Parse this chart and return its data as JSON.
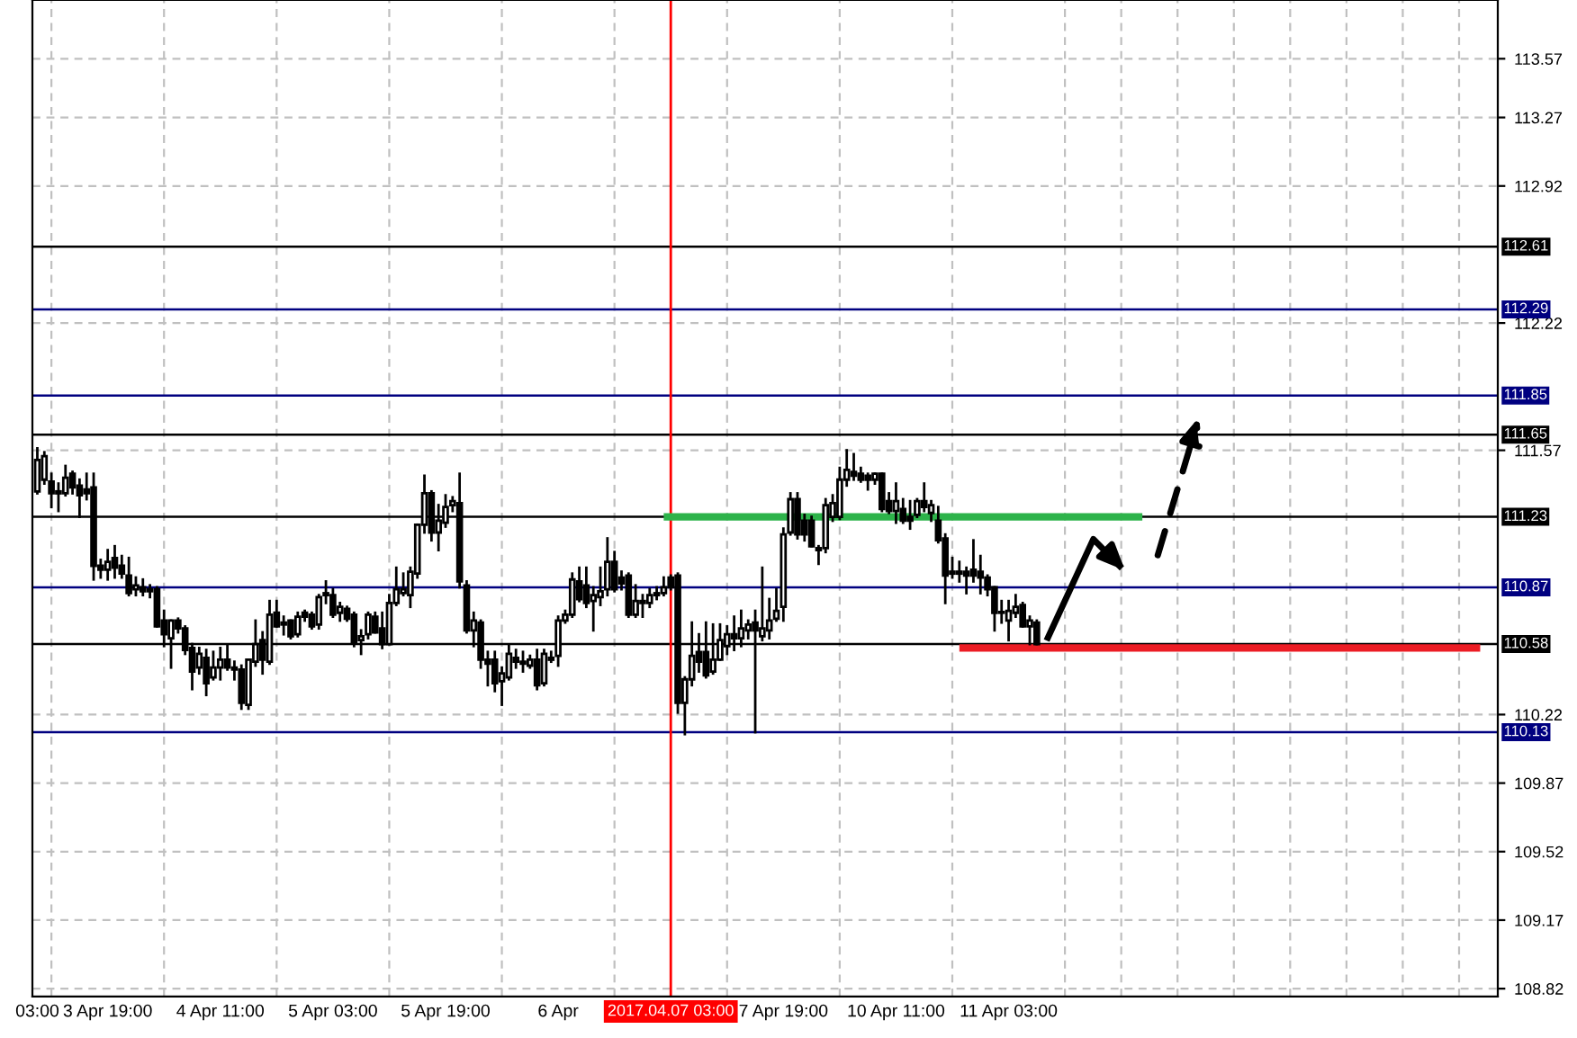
{
  "chart_data": {
    "type": "candlestick",
    "categories": [
      "03:00",
      null,
      null,
      null,
      null,
      null,
      null,
      null,
      null,
      null,
      "3 Apr 19:00",
      null,
      null,
      null,
      null,
      null,
      null,
      null,
      null,
      null,
      null,
      null,
      null,
      null,
      null,
      null,
      "4 Apr 11:00",
      null,
      null,
      null,
      null,
      null,
      null,
      null,
      null,
      null,
      null,
      null,
      null,
      null,
      null,
      null,
      "5 Apr 03:00",
      null,
      null,
      null,
      null,
      null,
      null,
      null,
      null,
      null,
      null,
      null,
      null,
      null,
      null,
      null,
      "5 Apr 19:00",
      null,
      null,
      null,
      null,
      null,
      null,
      null,
      null,
      null,
      null,
      null,
      null,
      null,
      null,
      null,
      "6 Apr",
      null,
      null,
      null,
      null,
      null,
      null,
      null,
      null,
      null,
      null,
      null,
      null,
      null,
      null,
      null,
      "2017.04.07 03:00",
      null,
      null,
      null,
      null,
      null,
      null,
      null,
      null,
      null,
      null,
      null,
      null,
      null,
      null,
      null,
      "7 Apr 19:00",
      null,
      null,
      null,
      null,
      null,
      null,
      null,
      null,
      null,
      null,
      null,
      null,
      null,
      null,
      null,
      "10 Apr 11:00",
      null,
      null,
      null,
      null,
      null,
      null,
      null,
      null,
      null,
      null,
      null,
      null,
      null,
      null,
      null,
      "11 Apr 03:00",
      null,
      null,
      null,
      null,
      null,
      null,
      null,
      null,
      null,
      null,
      null,
      null,
      null,
      null,
      null,
      null,
      null,
      null,
      null,
      null,
      null,
      null,
      null,
      null,
      null,
      null,
      null,
      null,
      null,
      null,
      null,
      null,
      null,
      null,
      null,
      null,
      null,
      null,
      null,
      null,
      null,
      null,
      null,
      null,
      null,
      null,
      null,
      null,
      null,
      null,
      null,
      null,
      null,
      null,
      null,
      null,
      null,
      null,
      null,
      null,
      null,
      null,
      null,
      null,
      null,
      null,
      null,
      null,
      null
    ],
    "ohlc": [
      [
        111.36,
        111.58,
        111.35,
        111.52
      ],
      [
        111.42,
        111.56,
        111.4,
        111.54
      ],
      [
        111.41,
        111.45,
        111.28,
        111.35
      ],
      [
        111.36,
        111.4,
        111.26,
        111.35
      ],
      [
        111.35,
        111.49,
        111.34,
        111.43
      ],
      [
        111.45,
        111.46,
        111.35,
        111.38
      ],
      [
        111.39,
        111.42,
        111.23,
        111.34
      ],
      [
        111.37,
        111.45,
        111.32,
        111.35
      ],
      [
        111.38,
        111.45,
        110.91,
        110.98
      ],
      [
        110.98,
        111.01,
        110.92,
        110.96
      ],
      [
        110.96,
        111.06,
        110.91,
        111.0
      ],
      [
        111.02,
        111.08,
        110.92,
        110.97
      ],
      [
        110.98,
        111.03,
        110.92,
        110.94
      ],
      [
        110.93,
        111.02,
        110.83,
        110.84
      ],
      [
        110.86,
        110.92,
        110.83,
        110.88
      ],
      [
        110.87,
        110.91,
        110.83,
        110.85
      ],
      [
        110.86,
        110.88,
        110.82,
        110.85
      ],
      [
        110.86,
        110.87,
        110.67,
        110.67
      ],
      [
        110.7,
        110.75,
        110.57,
        110.63
      ],
      [
        110.61,
        110.7,
        110.46,
        110.7
      ],
      [
        110.7,
        110.71,
        110.64,
        110.66
      ],
      [
        110.66,
        110.67,
        110.53,
        110.55
      ],
      [
        110.56,
        110.58,
        110.35,
        110.44
      ],
      [
        110.46,
        110.56,
        110.43,
        110.53
      ],
      [
        110.51,
        110.55,
        110.32,
        110.38
      ],
      [
        110.41,
        110.54,
        110.4,
        110.46
      ],
      [
        110.46,
        110.56,
        110.4,
        110.5
      ],
      [
        110.5,
        110.57,
        110.45,
        110.46
      ],
      [
        110.46,
        110.49,
        110.4,
        110.45
      ],
      [
        110.45,
        110.47,
        110.25,
        110.28
      ],
      [
        110.27,
        110.5,
        110.25,
        110.5
      ],
      [
        110.49,
        110.7,
        110.47,
        110.58
      ],
      [
        110.6,
        110.64,
        110.43,
        110.5
      ],
      [
        110.49,
        110.8,
        110.48,
        110.73
      ],
      [
        110.74,
        110.8,
        110.67,
        110.67
      ],
      [
        110.69,
        110.72,
        110.63,
        110.68
      ],
      [
        110.7,
        110.7,
        110.61,
        110.62
      ],
      [
        110.63,
        110.74,
        110.62,
        110.72
      ],
      [
        110.74,
        110.75,
        110.7,
        110.72
      ],
      [
        110.73,
        110.74,
        110.66,
        110.67
      ],
      [
        110.68,
        110.83,
        110.66,
        110.82
      ],
      [
        110.83,
        110.9,
        110.79,
        110.84
      ],
      [
        110.83,
        110.86,
        110.72,
        110.73
      ],
      [
        110.74,
        110.79,
        110.7,
        110.77
      ],
      [
        110.76,
        110.77,
        110.7,
        110.71
      ],
      [
        110.73,
        110.74,
        110.57,
        110.59
      ],
      [
        110.6,
        110.65,
        110.53,
        110.62
      ],
      [
        110.63,
        110.74,
        110.61,
        110.73
      ],
      [
        110.72,
        110.74,
        110.64,
        110.64
      ],
      [
        110.66,
        110.74,
        110.56,
        110.58
      ],
      [
        110.58,
        110.83,
        110.58,
        110.79
      ],
      [
        110.79,
        110.97,
        110.78,
        110.86
      ],
      [
        110.84,
        110.94,
        110.83,
        110.86
      ],
      [
        110.83,
        110.97,
        110.77,
        110.95
      ],
      [
        110.94,
        111.19,
        110.92,
        111.19
      ],
      [
        111.19,
        111.44,
        111.15,
        111.35
      ],
      [
        111.35,
        111.36,
        111.11,
        111.15
      ],
      [
        111.15,
        111.29,
        111.06,
        111.21
      ],
      [
        111.2,
        111.34,
        111.18,
        111.28
      ],
      [
        111.29,
        111.33,
        111.26,
        111.31
      ],
      [
        111.3,
        111.45,
        110.87,
        110.9
      ],
      [
        110.88,
        110.9,
        110.64,
        110.65
      ],
      [
        110.65,
        110.74,
        110.57,
        110.7
      ],
      [
        110.69,
        110.7,
        110.46,
        110.5
      ],
      [
        110.5,
        110.54,
        110.37,
        110.48
      ],
      [
        110.5,
        110.54,
        110.34,
        110.38
      ],
      [
        110.39,
        110.46,
        110.27,
        110.43
      ],
      [
        110.41,
        110.57,
        110.4,
        110.53
      ],
      [
        110.51,
        110.55,
        110.46,
        110.49
      ],
      [
        110.49,
        110.54,
        110.44,
        110.48
      ],
      [
        110.47,
        110.52,
        110.46,
        110.5
      ],
      [
        110.5,
        110.55,
        110.35,
        110.37
      ],
      [
        110.38,
        110.55,
        110.37,
        110.53
      ],
      [
        110.51,
        110.54,
        110.49,
        110.5
      ],
      [
        110.52,
        110.72,
        110.47,
        110.7
      ],
      [
        110.7,
        110.75,
        110.69,
        110.73
      ],
      [
        110.73,
        110.94,
        110.72,
        110.91
      ],
      [
        110.9,
        110.97,
        110.8,
        110.81
      ],
      [
        110.88,
        110.97,
        110.77,
        110.79
      ],
      [
        110.8,
        110.87,
        110.65,
        110.83
      ],
      [
        110.82,
        110.97,
        110.78,
        110.85
      ],
      [
        110.86,
        111.12,
        110.83,
        111.0
      ],
      [
        111.0,
        111.05,
        110.85,
        110.86
      ],
      [
        110.92,
        110.95,
        110.86,
        110.89
      ],
      [
        110.93,
        110.94,
        110.72,
        110.73
      ],
      [
        110.73,
        110.88,
        110.72,
        110.8
      ],
      [
        110.8,
        110.83,
        110.72,
        110.79
      ],
      [
        110.79,
        110.86,
        110.77,
        110.83
      ],
      [
        110.83,
        110.87,
        110.81,
        110.84
      ],
      [
        110.84,
        110.92,
        110.83,
        110.87
      ],
      [
        110.92,
        110.93,
        110.86,
        110.87
      ],
      [
        110.93,
        110.94,
        110.23,
        110.28
      ],
      [
        110.28,
        110.41,
        110.12,
        110.4
      ],
      [
        110.4,
        110.69,
        110.37,
        110.52
      ],
      [
        110.54,
        110.63,
        110.44,
        110.49
      ],
      [
        110.54,
        110.69,
        110.41,
        110.42
      ],
      [
        110.44,
        110.68,
        110.43,
        110.5
      ],
      [
        110.5,
        110.68,
        110.5,
        110.6
      ],
      [
        110.57,
        110.67,
        110.53,
        110.63
      ],
      [
        110.63,
        110.72,
        110.55,
        110.61
      ],
      [
        110.61,
        110.75,
        110.57,
        110.66
      ],
      [
        110.65,
        110.7,
        110.61,
        110.68
      ],
      [
        110.69,
        110.75,
        110.13,
        110.65
      ],
      [
        110.62,
        110.97,
        110.6,
        110.66
      ],
      [
        110.65,
        110.81,
        110.61,
        110.7
      ],
      [
        110.71,
        110.86,
        110.7,
        110.75
      ],
      [
        110.77,
        111.17,
        110.7,
        111.14
      ],
      [
        111.15,
        111.35,
        111.14,
        111.32
      ],
      [
        111.32,
        111.35,
        111.12,
        111.14
      ],
      [
        111.21,
        111.24,
        111.11,
        111.14
      ],
      [
        111.21,
        111.23,
        111.08,
        111.08
      ],
      [
        111.07,
        111.08,
        110.99,
        111.06
      ],
      [
        111.07,
        111.32,
        111.05,
        111.29
      ],
      [
        111.23,
        111.34,
        111.21,
        111.3
      ],
      [
        111.23,
        111.48,
        111.22,
        111.42
      ],
      [
        111.42,
        111.57,
        111.39,
        111.47
      ],
      [
        111.46,
        111.55,
        111.42,
        111.44
      ],
      [
        111.45,
        111.48,
        111.41,
        111.42
      ],
      [
        111.44,
        111.45,
        111.37,
        111.42
      ],
      [
        111.42,
        111.45,
        111.4,
        111.45
      ],
      [
        111.45,
        111.45,
        111.26,
        111.27
      ],
      [
        111.31,
        111.35,
        111.25,
        111.26
      ],
      [
        111.26,
        111.4,
        111.2,
        111.31
      ],
      [
        111.27,
        111.32,
        111.2,
        111.21
      ],
      [
        111.23,
        111.31,
        111.17,
        111.21
      ],
      [
        111.24,
        111.32,
        111.23,
        111.31
      ],
      [
        111.31,
        111.4,
        111.26,
        111.28
      ],
      [
        111.25,
        111.31,
        111.21,
        111.29
      ],
      [
        111.21,
        111.28,
        111.1,
        111.11
      ],
      [
        111.12,
        111.14,
        110.79,
        110.93
      ],
      [
        110.95,
        111.02,
        110.92,
        110.94
      ],
      [
        110.95,
        111.0,
        110.9,
        110.94
      ],
      [
        110.95,
        110.97,
        110.84,
        110.93
      ],
      [
        110.96,
        111.11,
        110.9,
        110.93
      ],
      [
        110.95,
        111.03,
        110.84,
        110.92
      ],
      [
        110.92,
        110.93,
        110.83,
        110.86
      ],
      [
        110.87,
        110.87,
        110.65,
        110.74
      ],
      [
        110.74,
        110.8,
        110.69,
        110.74
      ],
      [
        110.7,
        110.8,
        110.6,
        110.75
      ],
      [
        110.74,
        110.83,
        110.72,
        110.77
      ],
      [
        110.78,
        110.79,
        110.67,
        110.67
      ],
      [
        110.67,
        110.72,
        110.58,
        110.7
      ],
      [
        110.69,
        110.7,
        110.58,
        110.58
      ],
      null,
      null,
      null,
      null,
      null,
      null,
      null,
      null,
      null,
      null,
      null,
      null,
      null,
      null,
      null,
      null,
      null,
      null,
      null,
      null,
      null,
      null,
      null,
      null,
      null,
      null,
      null,
      null,
      null,
      null,
      null,
      null,
      null,
      null,
      null,
      null,
      null,
      null,
      null,
      null,
      null,
      null,
      null,
      null,
      null,
      null,
      null,
      null,
      null,
      null,
      null,
      null,
      null,
      null,
      null,
      null,
      null,
      null,
      null,
      null,
      null,
      null,
      null,
      null,
      null
    ],
    "series": [
      {
        "type": "line",
        "color": "#2db34a",
        "values": [
          null,
          null,
          null,
          null,
          null,
          null,
          null,
          null,
          null,
          null,
          null,
          null,
          null,
          null,
          null,
          null,
          null,
          null,
          null,
          null,
          null,
          null,
          null,
          null,
          null,
          null,
          null,
          null,
          null,
          null,
          null,
          null,
          null,
          null,
          null,
          null,
          null,
          null,
          null,
          null,
          null,
          null,
          null,
          null,
          null,
          null,
          null,
          null,
          null,
          null,
          null,
          null,
          null,
          null,
          null,
          null,
          null,
          null,
          null,
          null,
          null,
          null,
          null,
          null,
          null,
          null,
          null,
          null,
          null,
          null,
          null,
          null,
          null,
          null,
          null,
          null,
          null,
          null,
          null,
          null,
          null,
          null,
          null,
          null,
          null,
          null,
          null,
          null,
          null,
          111.23,
          111.23,
          111.23,
          111.23,
          111.23,
          111.23,
          111.23,
          111.23,
          111.23,
          111.23,
          111.23,
          111.23,
          111.23,
          111.23,
          111.23,
          111.23,
          111.23,
          111.23,
          111.23,
          111.23,
          111.23,
          111.23,
          111.23,
          111.23,
          111.23,
          111.23,
          111.23,
          111.23,
          111.23,
          111.23,
          111.23,
          111.23,
          111.23,
          111.23,
          111.23,
          111.23,
          111.23,
          111.23,
          111.23,
          111.23,
          111.23,
          111.23,
          111.23,
          111.23,
          111.23,
          111.23,
          111.23,
          111.23,
          111.23,
          111.23,
          111.23,
          111.23,
          111.23,
          111.23,
          111.23,
          111.23,
          111.23,
          111.23,
          111.23,
          111.23,
          111.23,
          111.23,
          111.23,
          111.23,
          111.23,
          111.23,
          111.23,
          111.23,
          111.23,
          null,
          null,
          null,
          null,
          null,
          null,
          null,
          null,
          null,
          null,
          null,
          null,
          null,
          null,
          null,
          null,
          null,
          null,
          null,
          null,
          null,
          null,
          null,
          null,
          null,
          null,
          null,
          null,
          null,
          null,
          null,
          null,
          null,
          null,
          null,
          null,
          null,
          null,
          null,
          null,
          null,
          null,
          null,
          null,
          null,
          null,
          null,
          null,
          null,
          null
        ]
      },
      {
        "type": "line",
        "color": "#ec1c24",
        "values": [
          null,
          null,
          null,
          null,
          null,
          null,
          null,
          null,
          null,
          null,
          null,
          null,
          null,
          null,
          null,
          null,
          null,
          null,
          null,
          null,
          null,
          null,
          null,
          null,
          null,
          null,
          null,
          null,
          null,
          null,
          null,
          null,
          null,
          null,
          null,
          null,
          null,
          null,
          null,
          null,
          null,
          null,
          null,
          null,
          null,
          null,
          null,
          null,
          null,
          null,
          null,
          null,
          null,
          null,
          null,
          null,
          null,
          null,
          null,
          null,
          null,
          null,
          null,
          null,
          null,
          null,
          null,
          null,
          null,
          null,
          null,
          null,
          null,
          null,
          null,
          null,
          null,
          null,
          null,
          null,
          null,
          null,
          null,
          null,
          null,
          null,
          null,
          null,
          null,
          null,
          null,
          null,
          null,
          null,
          null,
          null,
          null,
          null,
          null,
          null,
          null,
          null,
          null,
          null,
          null,
          null,
          null,
          null,
          null,
          null,
          null,
          null,
          null,
          null,
          null,
          null,
          null,
          null,
          null,
          null,
          null,
          null,
          null,
          null,
          null,
          null,
          null,
          null,
          null,
          null,
          null,
          110.56,
          110.56,
          110.56,
          110.56,
          110.56,
          110.56,
          110.56,
          110.56,
          110.56,
          110.56,
          110.56,
          110.56,
          110.56,
          110.56,
          110.56,
          110.56,
          110.56,
          110.56,
          110.56,
          110.56,
          110.56,
          110.56,
          110.56,
          110.56,
          110.56,
          110.56,
          110.56,
          110.56,
          110.56,
          110.56,
          110.56,
          110.56,
          110.56,
          110.56,
          110.56,
          110.56,
          110.56,
          110.56,
          110.56,
          110.56,
          110.56,
          110.56,
          110.56,
          110.56,
          110.56,
          110.56,
          110.56,
          110.56,
          110.56,
          110.56,
          110.56,
          110.56,
          110.56,
          110.56,
          110.56,
          110.56,
          110.56,
          110.56,
          110.56,
          110.56,
          110.56,
          110.56,
          110.56,
          110.56,
          110.56,
          110.56,
          110.56,
          110.56,
          110.56,
          110.56,
          110.56,
          110.56,
          110.56,
          110.56,
          110.56,
          null,
          null
        ]
      }
    ],
    "ylim": [
      108.78,
      113.87
    ],
    "yticks": [
      108.82,
      109.17,
      109.52,
      109.87,
      110.22,
      111.57,
      112.22,
      112.92,
      113.27,
      113.57
    ],
    "ref_lines": [
      {
        "axis": "y",
        "value": 112.61,
        "label": "112.61",
        "color": "#000000"
      },
      {
        "axis": "y",
        "value": 112.29,
        "label": "112.29",
        "color": "#000080"
      },
      {
        "axis": "y",
        "value": 111.85,
        "label": "111.85",
        "color": "#000080"
      },
      {
        "axis": "y",
        "value": 111.65,
        "label": "111.65",
        "color": "#000000"
      },
      {
        "axis": "y",
        "value": 111.23,
        "label": "111.23",
        "color": "#000000"
      },
      {
        "axis": "y",
        "value": 110.87,
        "label": "110.87",
        "color": "#000080"
      },
      {
        "axis": "y",
        "value": 110.58,
        "label": "110.58",
        "color": "#000000"
      },
      {
        "axis": "y",
        "value": 110.13,
        "label": "110.13",
        "color": "#000080"
      },
      {
        "axis": "x",
        "value": "2017.04.07 03:00",
        "color": "#ff0000"
      }
    ],
    "grid": true
  }
}
